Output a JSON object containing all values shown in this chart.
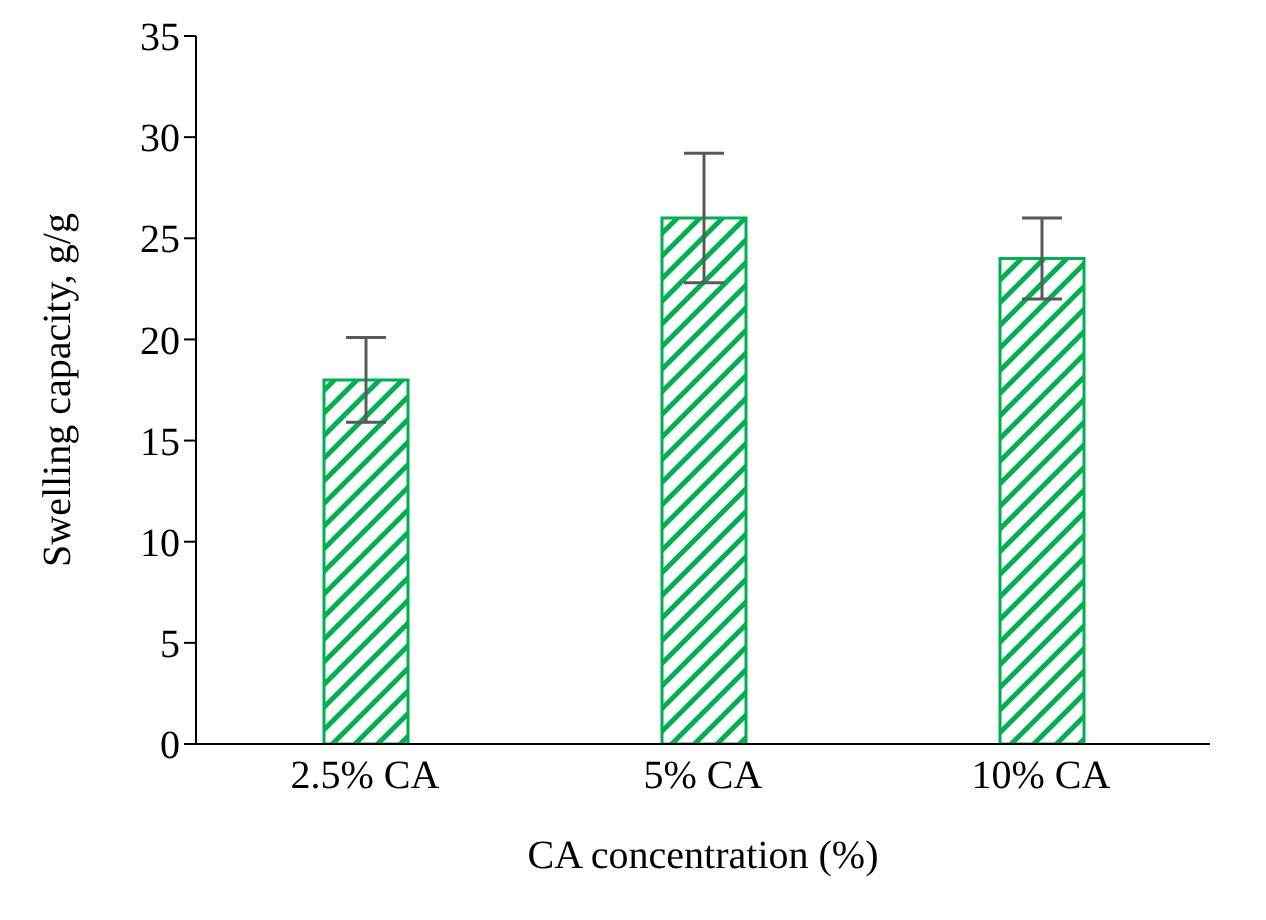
{
  "chart_data": {
    "type": "bar",
    "xlabel": "CA concentration (%)",
    "ylabel": "Swelling capacity, g/g",
    "categories": [
      "2.5% CA",
      "5% CA",
      "10% CA"
    ],
    "values": [
      18,
      26,
      24
    ],
    "errors": [
      2.1,
      3.2,
      2
    ],
    "color": "#00b050",
    "ylim": [
      0,
      35
    ],
    "yticks": [
      0,
      5,
      10,
      15,
      20,
      25,
      30,
      35
    ],
    "grid": false,
    "legend": false
  }
}
